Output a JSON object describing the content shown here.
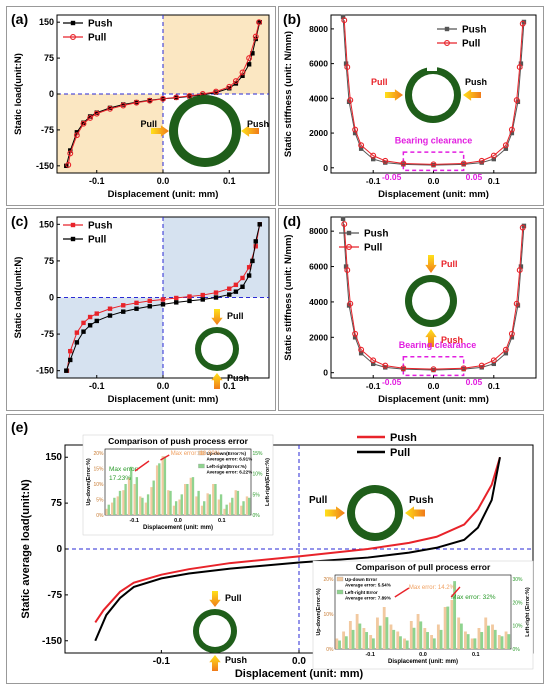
{
  "chart_data": [
    {
      "id": "a",
      "panel_label": "(a)",
      "type": "line",
      "xlabel": "Displacement (unit: mm)",
      "ylabel": "Static load(unit:N)",
      "xlim": [
        -0.16,
        0.16
      ],
      "ylim": [
        -165,
        165
      ],
      "xticks": [
        -0.1,
        0.0,
        0.1
      ],
      "xtick_labels": [
        "-0.1",
        "0.0",
        "0.1"
      ],
      "yticks": [
        -150,
        -75,
        0,
        75,
        150
      ],
      "ytick_labels": [
        "-150",
        "-75",
        "0",
        "75",
        "150"
      ],
      "legend_position": "top-left",
      "shading": "orange quadrants II and IV",
      "series": [
        {
          "name": "Push",
          "color": "#000000",
          "marker": "square",
          "x": [
            -0.146,
            -0.14,
            -0.13,
            -0.12,
            -0.11,
            -0.1,
            -0.08,
            -0.06,
            -0.04,
            -0.02,
            0.0,
            0.02,
            0.04,
            0.06,
            0.08,
            0.1,
            0.11,
            0.12,
            0.13,
            0.135,
            0.14,
            0.146
          ],
          "y": [
            -150,
            -118,
            -80,
            -60,
            -47,
            -39,
            -29,
            -22,
            -17,
            -13,
            -10,
            -8,
            -5,
            -2,
            3,
            12,
            22,
            38,
            62,
            85,
            115,
            150
          ]
        },
        {
          "name": "Pull",
          "color": "#e8232a",
          "marker": "circle",
          "x": [
            -0.143,
            -0.14,
            -0.13,
            -0.12,
            -0.11,
            -0.1,
            -0.08,
            -0.06,
            -0.04,
            -0.02,
            0.0,
            0.02,
            0.04,
            0.06,
            0.08,
            0.1,
            0.11,
            0.12,
            0.13,
            0.14,
            0.145
          ],
          "y": [
            -148,
            -124,
            -86,
            -62,
            -50,
            -41,
            -31,
            -24,
            -18,
            -14,
            -10,
            -7,
            -4,
            0,
            5,
            15,
            27,
            45,
            75,
            120,
            150
          ]
        }
      ],
      "annotations": [
        {
          "text": "Pull"
        },
        {
          "text": "Push"
        }
      ]
    },
    {
      "id": "b",
      "panel_label": "(b)",
      "type": "line",
      "xlabel": "Displacement (unit: mm)",
      "ylabel": "Static stiffness (unit: N/mm)",
      "xlim": [
        -0.17,
        0.17
      ],
      "ylim": [
        -300,
        8800
      ],
      "xticks": [
        -0.1,
        0.0,
        0.1
      ],
      "xtick_labels": [
        "-0.1",
        "0.0",
        "0.1"
      ],
      "yticks": [
        0,
        2000,
        4000,
        6000,
        8000
      ],
      "ytick_labels": [
        "0",
        "2000",
        "4000",
        "6000",
        "8000"
      ],
      "legend_position": "top-right",
      "series": [
        {
          "name": "Push",
          "color": "#555555",
          "marker": "square",
          "x": [
            -0.15,
            -0.145,
            -0.14,
            -0.13,
            -0.12,
            -0.1,
            -0.08,
            -0.05,
            0.0,
            0.05,
            0.08,
            0.1,
            0.12,
            0.13,
            0.14,
            0.145,
            0.15
          ],
          "y": [
            8700,
            6000,
            3800,
            2000,
            1100,
            500,
            300,
            200,
            150,
            200,
            300,
            500,
            1100,
            2000,
            3800,
            6000,
            8400
          ]
        },
        {
          "name": "Pull",
          "color": "#e8232a",
          "marker": "circle",
          "x": [
            -0.148,
            -0.143,
            -0.138,
            -0.13,
            -0.12,
            -0.1,
            -0.08,
            -0.05,
            0.0,
            0.05,
            0.08,
            0.1,
            0.12,
            0.13,
            0.138,
            0.143,
            0.148
          ],
          "y": [
            8500,
            5800,
            3900,
            2200,
            1300,
            700,
            400,
            250,
            200,
            250,
            400,
            700,
            1300,
            2200,
            3900,
            5800,
            8300
          ]
        }
      ],
      "annotations": [
        {
          "text": "Pull"
        },
        {
          "text": "Push"
        },
        {
          "text": "Bearing clearance"
        },
        {
          "text": "-0.05"
        },
        {
          "text": "0.05"
        }
      ]
    },
    {
      "id": "c",
      "panel_label": "(c)",
      "type": "line",
      "xlabel": "Displacement (unit: mm)",
      "ylabel": "Static load(unit:N)",
      "xlim": [
        -0.16,
        0.16
      ],
      "ylim": [
        -165,
        165
      ],
      "xticks": [
        -0.1,
        0.0,
        0.1
      ],
      "xtick_labels": [
        "-0.1",
        "0.0",
        "0.1"
      ],
      "yticks": [
        -150,
        -75,
        0,
        75,
        150
      ],
      "ytick_labels": [
        "-150",
        "-75",
        "0",
        "75",
        "150"
      ],
      "legend_position": "top-left",
      "shading": "blue quadrants I and III",
      "series": [
        {
          "name": "Push",
          "color": "#e8232a",
          "marker": "square",
          "x": [
            -0.145,
            -0.14,
            -0.13,
            -0.12,
            -0.11,
            -0.1,
            -0.08,
            -0.06,
            -0.04,
            -0.02,
            0.0,
            0.02,
            0.04,
            0.06,
            0.08,
            0.1,
            0.11,
            0.12,
            0.13,
            0.14,
            0.146
          ],
          "y": [
            -150,
            -110,
            -72,
            -52,
            -40,
            -33,
            -23,
            -16,
            -11,
            -7,
            -4,
            -1,
            2,
            5,
            10,
            18,
            26,
            40,
            62,
            105,
            150
          ]
        },
        {
          "name": "Pull",
          "color": "#000000",
          "marker": "square",
          "x": [
            -0.146,
            -0.14,
            -0.13,
            -0.12,
            -0.11,
            -0.1,
            -0.08,
            -0.06,
            -0.04,
            -0.02,
            0.0,
            0.02,
            0.04,
            0.06,
            0.08,
            0.1,
            0.11,
            0.12,
            0.13,
            0.135,
            0.14,
            0.146
          ],
          "y": [
            -150,
            -128,
            -92,
            -70,
            -57,
            -48,
            -37,
            -29,
            -23,
            -18,
            -14,
            -10,
            -7,
            -4,
            0,
            6,
            12,
            22,
            45,
            75,
            115,
            150
          ]
        }
      ],
      "annotations": [
        {
          "text": "Pull"
        },
        {
          "text": "Push"
        }
      ]
    },
    {
      "id": "d",
      "panel_label": "(d)",
      "type": "line",
      "xlabel": "Displacement (unit: mm)",
      "ylabel": "Static stiffness (unit: N/mm)",
      "xlim": [
        -0.17,
        0.17
      ],
      "ylim": [
        -300,
        8800
      ],
      "xticks": [
        -0.1,
        0.0,
        0.1
      ],
      "xtick_labels": [
        "-0.1",
        "0.0",
        "0.1"
      ],
      "yticks": [
        0,
        2000,
        4000,
        6000,
        8000
      ],
      "ytick_labels": [
        "0",
        "2000",
        "4000",
        "6000",
        "8000"
      ],
      "legend_position": "top-left",
      "series": [
        {
          "name": "Push",
          "color": "#555555",
          "marker": "square",
          "x": [
            -0.15,
            -0.145,
            -0.14,
            -0.13,
            -0.12,
            -0.1,
            -0.08,
            -0.05,
            0.0,
            0.05,
            0.08,
            0.1,
            0.12,
            0.13,
            0.14,
            0.145,
            0.15
          ],
          "y": [
            8700,
            6000,
            3800,
            2000,
            1100,
            500,
            300,
            200,
            150,
            200,
            300,
            500,
            1100,
            2000,
            3800,
            6000,
            8300
          ]
        },
        {
          "name": "Pull",
          "color": "#e8232a",
          "marker": "circle",
          "x": [
            -0.148,
            -0.143,
            -0.138,
            -0.13,
            -0.12,
            -0.1,
            -0.08,
            -0.05,
            0.0,
            0.05,
            0.08,
            0.1,
            0.12,
            0.13,
            0.138,
            0.143,
            0.148
          ],
          "y": [
            8400,
            5800,
            3900,
            2200,
            1300,
            700,
            400,
            250,
            200,
            250,
            400,
            700,
            1300,
            2200,
            3900,
            5800,
            8200
          ]
        }
      ],
      "annotations": [
        {
          "text": "Pull"
        },
        {
          "text": "Push"
        },
        {
          "text": "Bearing clearance"
        },
        {
          "text": "-0.05"
        },
        {
          "text": "0.05"
        }
      ]
    },
    {
      "id": "e",
      "panel_label": "(e)",
      "type": "line",
      "xlabel": "Displacement (unit: mm)",
      "ylabel": "Static average load(unit:N)",
      "xlim": [
        -0.17,
        0.17
      ],
      "ylim": [
        -170,
        170
      ],
      "xticks": [
        -0.1,
        0.0,
        0.1
      ],
      "xtick_labels": [
        "-0.1",
        "0.0",
        "0.1"
      ],
      "yticks": [
        -150,
        -75,
        0,
        75,
        150
      ],
      "ytick_labels": [
        "-150",
        "-75",
        "0",
        "75",
        "150"
      ],
      "legend_position": "top-right",
      "series": [
        {
          "name": "Push",
          "color": "#e8232a",
          "x": [
            -0.148,
            -0.142,
            -0.13,
            -0.12,
            -0.1,
            -0.08,
            -0.05,
            0.0,
            0.05,
            0.08,
            0.1,
            0.12,
            0.13,
            0.14,
            0.146
          ],
          "y": [
            -120,
            -100,
            -70,
            -55,
            -42,
            -33,
            -23,
            -12,
            0,
            10,
            20,
            40,
            65,
            105,
            150
          ]
        },
        {
          "name": "Pull",
          "color": "#000000",
          "x": [
            -0.148,
            -0.14,
            -0.13,
            -0.12,
            -0.1,
            -0.08,
            -0.05,
            0.0,
            0.05,
            0.08,
            0.1,
            0.12,
            0.13,
            0.14,
            0.146
          ],
          "y": [
            -150,
            -108,
            -80,
            -62,
            -48,
            -40,
            -32,
            -22,
            -14,
            -6,
            2,
            15,
            35,
            80,
            150
          ]
        }
      ],
      "insets": [
        {
          "title": "Comparison of push process error",
          "ylabel_left": "Up-down(Error:%)",
          "ylabel_right": "Left-right(Error:%)",
          "xlabel": "Displacement (unit: mm)",
          "xtick_labels": [
            "-0.1",
            "0.0",
            "0.1"
          ],
          "left_ticks": [
            "0%",
            "5%",
            "10%",
            "15%",
            "20%"
          ],
          "right_ticks": [
            "0%",
            "5%",
            "10%",
            "15%"
          ],
          "legend": [
            {
              "label": "Up-down(Error:%)",
              "detail": "Average error: 6.91%",
              "color": "#f2c9a0"
            },
            {
              "label": "Left-right(Error:%)",
              "detail": "Average error: 6.22%",
              "color": "#8fd38f"
            }
          ],
          "max_error_updown": "Max error: 18.99%",
          "max_error_leftright": "Max error:\n17.23%",
          "bars_updown": [
            2,
            4,
            6,
            8,
            12,
            10,
            6,
            4,
            9,
            16,
            19,
            8,
            3,
            5,
            10,
            12,
            6,
            3,
            7,
            10,
            5,
            2,
            4,
            8,
            3,
            6
          ],
          "bars_leftright": [
            3,
            5,
            7,
            9,
            14,
            11,
            5,
            6,
            10,
            15,
            17,
            7,
            4,
            6,
            9,
            11,
            7,
            4,
            6,
            9,
            6,
            3,
            5,
            7,
            4,
            5
          ]
        },
        {
          "title": "Comparison of pull process error",
          "ylabel_left": "Up-down(Error:%)",
          "ylabel_right": "Left-right (Error:%)",
          "xlabel": "Displacement (unit: mm)",
          "xtick_labels": [
            "-0.1",
            "0.0",
            "0.1"
          ],
          "left_ticks": [
            "0%",
            "10%",
            "20%"
          ],
          "right_ticks": [
            "0%",
            "10%",
            "20%",
            "30%"
          ],
          "legend": [
            {
              "label": "Up-down Error",
              "detail": "Average error: 5.54%",
              "color": "#f2c9a0"
            },
            {
              "label": "Left-right Error",
              "detail": "Average error: 7.89%",
              "color": "#8fd38f"
            }
          ],
          "max_error_updown": "Max error: 14.2%",
          "max_error_leftright": "Max error: 32%",
          "bars_updown": [
            3,
            5,
            8,
            10,
            6,
            4,
            9,
            12,
            7,
            5,
            3,
            8,
            10,
            6,
            4,
            7,
            12,
            14,
            9,
            5,
            3,
            6,
            9,
            7,
            4,
            5
          ],
          "bars_leftright": [
            4,
            6,
            9,
            12,
            8,
            5,
            11,
            15,
            9,
            6,
            4,
            10,
            13,
            8,
            5,
            9,
            20,
            32,
            12,
            7,
            5,
            8,
            11,
            9,
            6,
            7
          ]
        }
      ],
      "annotations": [
        {
          "text": "Pull"
        },
        {
          "text": "Push"
        }
      ]
    }
  ],
  "colors": {
    "ring": "#1f5e1a",
    "ring_inner": "#ffffff",
    "arrow_from": "#ffe11a",
    "arrow_to": "#f07a1a",
    "clearance": "#e21ee0",
    "shade_orange": "#fbe7c2",
    "shade_blue": "#d6e2f0",
    "axis_dash": "#2a2ad4"
  }
}
